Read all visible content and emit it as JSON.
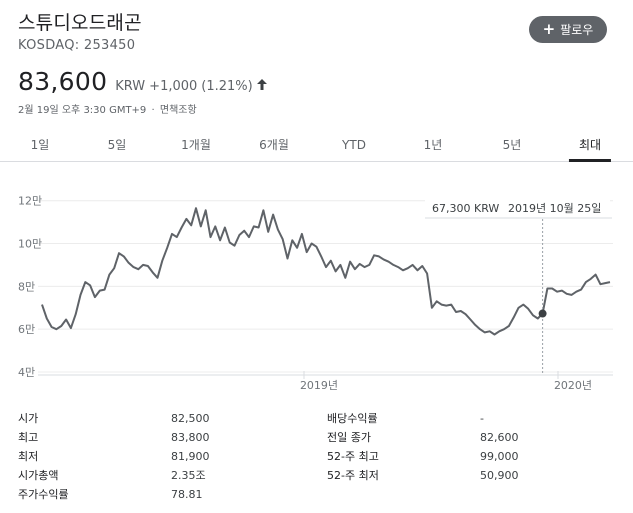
{
  "header": {
    "company_name": "스튜디오드래곤",
    "ticker": "KOSDAQ: 253450",
    "follow_label": "팔로우"
  },
  "quote": {
    "price": "83,600",
    "currency": "KRW",
    "change": "+1,000",
    "change_pct": "(1.21%)",
    "direction_icon": "arrow-up-icon",
    "timestamp_date": "2월 19일",
    "timestamp_time": "오후 3:30 GMT+9",
    "disclaimer": "면책조항"
  },
  "tabs": [
    {
      "label": "1일",
      "active": false
    },
    {
      "label": "5일",
      "active": false
    },
    {
      "label": "1개월",
      "active": false
    },
    {
      "label": "6개월",
      "active": false
    },
    {
      "label": "YTD",
      "active": false
    },
    {
      "label": "1년",
      "active": false
    },
    {
      "label": "5년",
      "active": false
    },
    {
      "label": "최대",
      "active": true
    }
  ],
  "tooltip": {
    "price": "67,300 KRW",
    "date": "2019년 10월 25일"
  },
  "chart_data": {
    "type": "line",
    "title": "",
    "xlabel": "",
    "ylabel": "",
    "y_ticks": [
      "12만",
      "10만",
      "8만",
      "6만",
      "4만"
    ],
    "y_tick_values": [
      120000,
      100000,
      80000,
      60000,
      40000
    ],
    "x_ticks": [
      "2019년",
      "2020년"
    ],
    "ylim": [
      40000,
      125000
    ],
    "grid": true,
    "line_color": "#5f6368",
    "series": [
      {
        "values": [
          71500,
          65000,
          61000,
          60000,
          61500,
          64500,
          60500,
          67000,
          76000,
          82000,
          80500,
          75000,
          78000,
          78500,
          85500,
          88500,
          95500,
          94000,
          91000,
          89000,
          88000,
          90000,
          89500,
          86500,
          84000,
          92000,
          98000,
          104500,
          103000,
          107500,
          111500,
          108500,
          116500,
          108000,
          115500,
          103000,
          108000,
          101500,
          107500,
          100500,
          99000,
          104000,
          106000,
          103000,
          108000,
          107500,
          115500,
          105500,
          113500,
          106500,
          102000,
          93000,
          101500,
          98000,
          104500,
          96000,
          100000,
          98500,
          94000,
          89000,
          92000,
          87000,
          90000,
          84000,
          91500,
          88000,
          90500,
          89000,
          90000,
          94500,
          94000,
          92500,
          91500,
          90000,
          89000,
          87500,
          88500,
          90000,
          87500,
          89500,
          86000,
          70000,
          73000,
          71500,
          71000,
          71500,
          68000,
          68500,
          67000,
          64500,
          62000,
          60000,
          58500,
          59000,
          57500,
          59000,
          60000,
          61500,
          65500,
          70000,
          71500,
          69500,
          66500,
          65000,
          67300,
          79000,
          79000,
          77500,
          78000,
          76500,
          76000,
          77500,
          78500,
          82000,
          83500,
          85500,
          81000,
          81500,
          82000
        ]
      }
    ],
    "highlight_index": 104,
    "highlight_value": 67300
  },
  "stats": {
    "left": [
      {
        "label": "시가",
        "value": "82,500"
      },
      {
        "label": "최고",
        "value": "83,800"
      },
      {
        "label": "최저",
        "value": "81,900"
      },
      {
        "label": "시가총액",
        "value": "2.35조"
      },
      {
        "label": "주가수익률",
        "value": "78.81"
      }
    ],
    "right": [
      {
        "label": "배당수익률",
        "value": "-"
      },
      {
        "label": "전일 종가",
        "value": "82,600"
      },
      {
        "label": "52-주 최고",
        "value": "99,000"
      },
      {
        "label": "52-주 최저",
        "value": "50,900"
      }
    ]
  }
}
